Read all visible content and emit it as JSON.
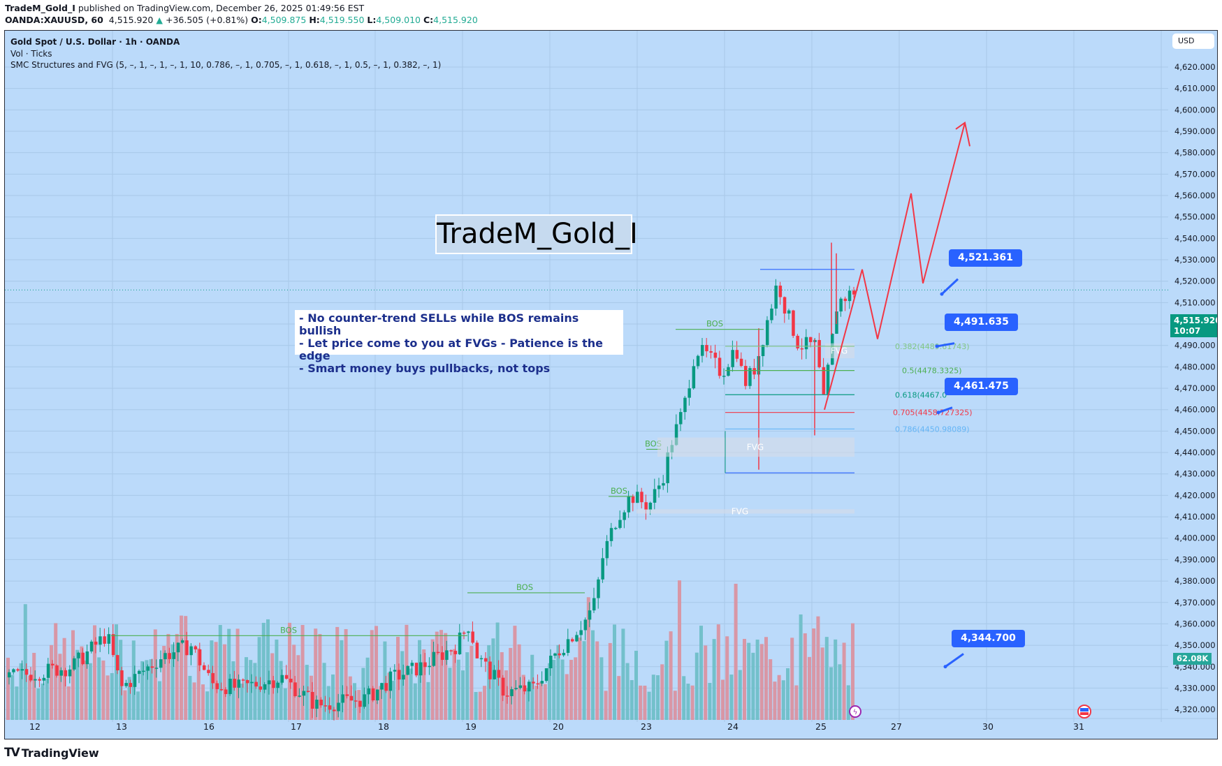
{
  "header": {
    "author": "TradeM_Gold_I",
    "published_text": "published on TradingView.com, December 26, 2025 01:49:56 EST",
    "symbol": "OANDA:XAUUSD, 60",
    "last": "4,515.920",
    "change_arrow": "▲",
    "change": "+36.505 (+0.81%)",
    "o_label": "O:",
    "o": "4,509.875",
    "h_label": "H:",
    "h": "4,519.550",
    "l_label": "L:",
    "l": "4,509.010",
    "c_label": "C:",
    "c": "4,515.920"
  },
  "legend": {
    "title": "Gold Spot / U.S. Dollar · 1h · OANDA",
    "volume": "Vol · Ticks",
    "indicator": "SMC Structures and FVG (5, –, 1, –, 1, –, 1, 10, 0.786, –, 1, 0.705, –, 1, 0.618, –, 1, 0.5, –, 1, 0.382, –, 1)"
  },
  "currency_button": "USD",
  "current_price_label": {
    "price": "4,515.920",
    "countdown": "10:07"
  },
  "volume_label": "62.08K",
  "title_box": "TradeM_Gold_I",
  "notes": [
    "- No counter-trend SELLs while BOS remains bullish",
    "- Let price come to you at FVGs - Patience is the edge",
    "- Smart money buys pullbacks, not tops"
  ],
  "callouts": [
    {
      "label": "4,521.361"
    },
    {
      "label": "4,491.635"
    },
    {
      "label": "4,461.475"
    },
    {
      "label": "4,344.700"
    }
  ],
  "fib_levels": [
    {
      "label": "0.382(4489.61743)",
      "color": "#81c784"
    },
    {
      "label": "0.5(4478.3325)",
      "color": "#4caf50"
    },
    {
      "label": "0.618(4467.0",
      "color": "#089981"
    },
    {
      "label": "0.705(4458.727325)",
      "color": "#f23645"
    },
    {
      "label": "0.786(4450.98089)",
      "color": "#64b5f6"
    }
  ],
  "structure_labels": {
    "bos": "BOS",
    "fvg": "FVG"
  },
  "brand": {
    "mark": "TV",
    "name": "TradingView"
  },
  "colors": {
    "background": "#bbdafa",
    "up": "#089981",
    "down": "#f23645",
    "vol_up": "#6fbfc8",
    "vol_down": "#d993a1",
    "bos": "#4caf50",
    "projection": "#f23645",
    "callout": "#2962ff"
  },
  "chart_data": {
    "type": "candlestick",
    "title": "Gold Spot / U.S. Dollar · 1h · OANDA",
    "symbol": "OANDA:XAUUSD",
    "interval": "1h",
    "xlabel": "",
    "ylabel": "USD",
    "ylim": [
      4312,
      4628
    ],
    "y_ticks": [
      4320,
      4330,
      4340,
      4350,
      4360,
      4370,
      4380,
      4390,
      4400,
      4410,
      4420,
      4430,
      4440,
      4450,
      4460,
      4470,
      4480,
      4490,
      4500,
      4510,
      4520,
      4530,
      4540,
      4550,
      4560,
      4570,
      4580,
      4590,
      4600,
      4610,
      4620
    ],
    "x_ticks": [
      "12",
      "13",
      "16",
      "17",
      "18",
      "19",
      "20",
      "23",
      "24",
      "25",
      "27",
      "30",
      "31"
    ],
    "last_price": 4515.92,
    "ohlc_last": {
      "open": 4509.875,
      "high": 4519.55,
      "low": 4509.01,
      "close": 4515.92,
      "change": 36.505,
      "change_pct": 0.81
    },
    "key_levels": {
      "bos": [
        4354.5,
        4374.5,
        4419.5,
        4441.5,
        4497.5
      ],
      "swing_high": 4525.5,
      "swing_low": 4430.5,
      "fvg_zones": [
        [
          4438,
          4447
        ],
        [
          4413,
          4412
        ],
        [
          4484,
          4491
        ]
      ],
      "fibonacci": {
        "0.382": 4489.61743,
        "0.5": 4478.3325,
        "0.618": 4467.0,
        "0.705": 4458.727325,
        "0.786": 4450.98089
      }
    },
    "projection_path": [
      4460,
      4525,
      4493,
      4561,
      4519,
      4594
    ],
    "callout_prices": [
      4521.361,
      4491.635,
      4461.475,
      4344.7
    ],
    "last_volume": "62.08K",
    "grid": true,
    "legend_position": "top-left"
  }
}
